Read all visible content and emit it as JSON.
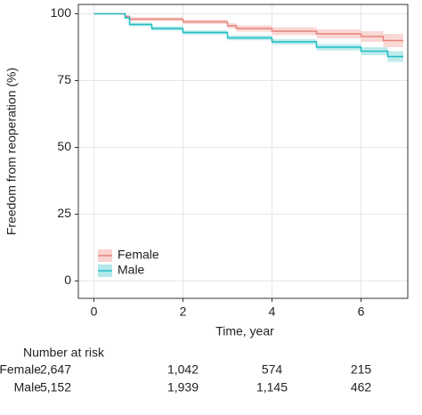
{
  "chart_data": {
    "type": "step",
    "x_label": "Time, year",
    "y_label": "Freedom from reoperation (%)",
    "xlim": [
      -0.35,
      7.05
    ],
    "xticks": [
      0,
      2,
      4,
      6
    ],
    "ylim": [
      -6.5,
      103.5
    ],
    "yticks": [
      0,
      25,
      50,
      75,
      100
    ],
    "grid": true,
    "legend": "bottom-left",
    "series": [
      {
        "name": "Female",
        "color": "#e8837c",
        "band_color": "#f8d2cf",
        "x": [
          0,
          0.7,
          0.8,
          2,
          3,
          3.2,
          4,
          5,
          6,
          6.5,
          6.95
        ],
        "values": [
          100,
          99,
          98,
          97,
          95.5,
          94.5,
          93.5,
          92.5,
          91.5,
          90,
          90
        ],
        "lower": [
          100,
          98.5,
          97.3,
          96.2,
          94.5,
          93.3,
          92,
          90.8,
          89.5,
          87.5,
          87.5
        ],
        "upper": [
          100,
          99.5,
          98.7,
          97.8,
          96.5,
          95.7,
          95,
          94.2,
          93.5,
          92.5,
          92.5
        ]
      },
      {
        "name": "Male",
        "color": "#1fbdc2",
        "band_color": "#b3e7e9",
        "x": [
          0,
          0.7,
          0.8,
          1.3,
          2,
          3,
          4,
          5,
          6,
          6.6,
          6.95
        ],
        "values": [
          100,
          98.5,
          96,
          94.5,
          93,
          91,
          89.5,
          87.5,
          86,
          84,
          84
        ],
        "lower": [
          100,
          98,
          95.3,
          93.7,
          92.2,
          90.1,
          88.5,
          86.3,
          84.5,
          82,
          82
        ],
        "upper": [
          100,
          99,
          96.7,
          95.3,
          93.8,
          91.9,
          90.5,
          88.7,
          87.5,
          86,
          86
        ]
      }
    ],
    "risk_table": {
      "title": "Number at risk",
      "rows": [
        {
          "name": "Female",
          "values": [
            "2,647",
            "1,042",
            "574",
            "215"
          ]
        },
        {
          "name": "Male",
          "values": [
            "5,152",
            "1,939",
            "1,145",
            "462"
          ]
        }
      ]
    }
  }
}
